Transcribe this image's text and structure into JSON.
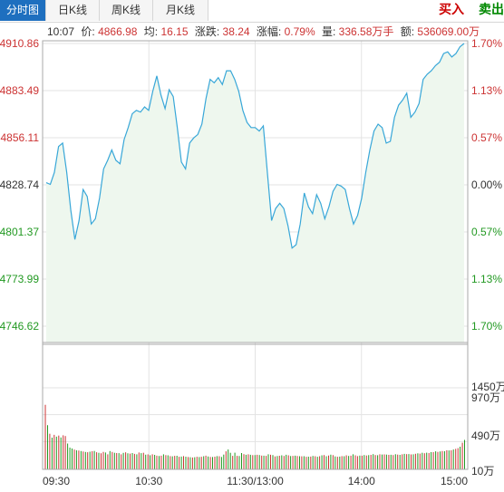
{
  "tabs": [
    {
      "label": "分时图",
      "active": true
    },
    {
      "label": "日K线",
      "active": false
    },
    {
      "label": "周K线",
      "active": false
    },
    {
      "label": "月K线",
      "active": false
    }
  ],
  "actions": {
    "buy_label": "买入",
    "sell_label": "卖出"
  },
  "info_bar": {
    "time": "10:07",
    "price_label": "价:",
    "price": "4866.98",
    "avg_label": "均:",
    "avg": "16.15",
    "change_label": "涨跌:",
    "change": "38.24",
    "pct_label": "涨幅:",
    "pct": "0.79%",
    "volume_label": "量:",
    "volume": "336.58万手",
    "amount_label": "额:",
    "amount": "536069.00万"
  },
  "colors": {
    "price_line": "#38a7d8",
    "area_fill": "#eef7ee",
    "up": "#cc3333",
    "down": "#229922",
    "grid": "#e3e3e3",
    "active_tab": "#1e6fbf",
    "buy": "#cc0000",
    "sell": "#008800"
  },
  "chart_data": {
    "type": "line",
    "price": {
      "left_ticks": [
        "4910.86",
        "4883.49",
        "4856.11",
        "4828.74",
        "4801.37",
        "4773.99",
        "4746.62"
      ],
      "right_ticks": [
        "1.70%",
        "1.13%",
        "0.57%",
        "0.00%",
        "0.57%",
        "1.13%",
        "1.70%"
      ],
      "ylim": [
        4746.62,
        4910.86
      ],
      "values": [
        4830.0,
        4829.0,
        4836.0,
        4851.0,
        4853.0,
        4836.0,
        4814.0,
        4797.0,
        4808.0,
        4826.0,
        4822.0,
        4806.0,
        4809.0,
        4821.0,
        4838.0,
        4843.0,
        4849.0,
        4843.0,
        4841.0,
        4855.0,
        4862.0,
        4870.0,
        4872.0,
        4871.0,
        4874.0,
        4872.0,
        4883.0,
        4892.0,
        4881.0,
        4873.0,
        4884.0,
        4880.0,
        4862.0,
        4842.0,
        4838.0,
        4853.0,
        4856.0,
        4858.0,
        4864.0,
        4879.0,
        4890.0,
        4888.0,
        4891.0,
        4887.0,
        4895.0,
        4895.0,
        4890.0,
        4883.0,
        4872.0,
        4865.0,
        4862.0,
        4862.0,
        4860.0,
        4863.0,
        4835.0,
        4808.0,
        4815.0,
        4818.0,
        4815.0,
        4805.0,
        4792.0,
        4794.0,
        4806.0,
        4824.0,
        4816.0,
        4812.0,
        4823.0,
        4818.0,
        4809.0,
        4816.0,
        4825.0,
        4829.0,
        4828.0,
        4826.0,
        4815.0,
        4806.0,
        4811.0,
        4821.0,
        4836.0,
        4849.0,
        4860.0,
        4864.0,
        4862.0,
        4853.0,
        4854.0,
        4868.0,
        4875.0,
        4878.0,
        4882.0,
        4868.0,
        4871.0,
        4876.0,
        4890.0,
        4893.0,
        4895.0,
        4898.0,
        4900.0,
        4905.0,
        4906.0,
        4903.0,
        4905.0,
        4909.0,
        4910.86
      ]
    },
    "volume": {
      "ticks": [
        "1450万",
        "970万",
        "490万",
        "10万"
      ],
      "ylim": [
        10,
        1450
      ],
      "values": [
        1148,
        782,
        630,
        560,
        610,
        578,
        598,
        563,
        602,
        590,
        455,
        382,
        366,
        348,
        336,
        330,
        320,
        312,
        305,
        300,
        310,
        318,
        322,
        300,
        290,
        282,
        305,
        295,
        262,
        320,
        305,
        290,
        285,
        284,
        262,
        288,
        298,
        282,
        276,
        285,
        270,
        262,
        295,
        283,
        290,
        256,
        261,
        246,
        262,
        252,
        238,
        234,
        238,
        262,
        248,
        244,
        230,
        226,
        235,
        236,
        218,
        222,
        230,
        220,
        214,
        210,
        206,
        210,
        218,
        214,
        218,
        228,
        238,
        224,
        216,
        214,
        220,
        230,
        228,
        215,
        258,
        315,
        348,
        290,
        235,
        292,
        235,
        231,
        285,
        265,
        255,
        262,
        255,
        248,
        250,
        255,
        250,
        240,
        238,
        235,
        262,
        255,
        250,
        225,
        232,
        236,
        245,
        234,
        255,
        245,
        232,
        235,
        238,
        232,
        228,
        226,
        228,
        218,
        221,
        222,
        234,
        228,
        218,
        228,
        244,
        250,
        228,
        240,
        256,
        248,
        225,
        218,
        222,
        230,
        228,
        244,
        233,
        238,
        262,
        245,
        230,
        240,
        238,
        250,
        242,
        248,
        252,
        265,
        250,
        246,
        262,
        259,
        260,
        258,
        252,
        255,
        250,
        264,
        258,
        252,
        262,
        270,
        266,
        268,
        260,
        262,
        272,
        280,
        276,
        290,
        282,
        292,
        285,
        302,
        302,
        315,
        306,
        314,
        321,
        318,
        336,
        332,
        336,
        348,
        360,
        372,
        398,
        470,
        520
      ],
      "up": [
        true,
        false,
        true,
        false,
        true,
        false,
        true,
        false,
        true,
        true,
        false,
        false,
        false,
        true,
        false,
        true,
        false,
        true,
        false,
        true,
        false,
        true,
        false,
        true,
        false,
        true,
        true,
        false,
        true,
        false,
        true,
        false,
        true,
        false,
        true,
        false,
        true,
        false,
        true,
        false,
        true,
        false,
        true,
        false,
        true,
        false,
        true,
        false,
        true,
        false,
        true,
        false,
        true,
        false,
        true,
        false,
        true,
        false,
        true,
        false,
        true,
        false,
        true,
        false,
        true,
        false,
        true,
        false,
        true,
        false,
        true,
        false,
        true,
        false,
        true,
        false,
        true,
        false,
        true,
        false,
        false,
        true,
        false,
        false,
        true,
        false,
        true,
        false,
        false,
        true,
        false,
        true,
        false,
        true,
        false,
        true,
        false,
        true,
        false,
        true,
        false,
        true,
        false,
        true,
        false,
        true,
        false,
        true,
        false,
        true,
        false,
        true,
        false,
        true,
        false,
        true,
        false,
        true,
        false,
        true,
        false,
        true,
        false,
        true,
        false,
        true,
        false,
        true,
        false,
        true,
        false,
        true,
        false,
        true,
        false,
        true,
        false,
        true,
        false,
        true,
        true,
        false,
        true,
        false,
        true,
        false,
        true,
        false,
        true,
        false,
        true,
        false,
        true,
        false,
        true,
        false,
        true,
        false,
        true,
        false,
        true,
        false,
        true,
        false,
        true,
        false,
        true,
        false,
        true,
        false,
        true,
        false,
        true,
        false,
        true,
        false,
        true,
        false,
        true,
        false,
        true,
        false,
        true,
        false,
        true,
        true,
        false,
        true,
        false
      ]
    },
    "x_ticks": [
      "09:30",
      "10:30",
      "11:30/13:00",
      "14:00",
      "15:00"
    ],
    "grid": true
  }
}
